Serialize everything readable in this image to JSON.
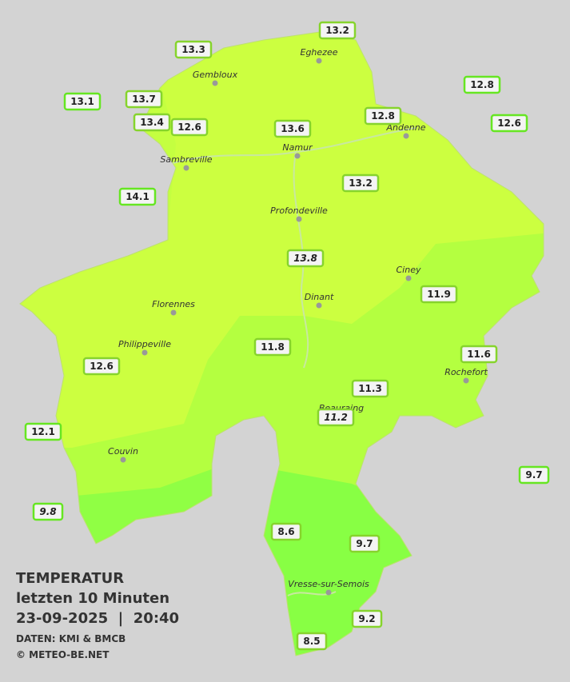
{
  "legend": {
    "title": "TEMPERATUR",
    "subtitle": "letzten 10 Minuten",
    "datetime": "23-09-2025  |  20:40",
    "source": "DATEN: KMI & BMCB",
    "copyright": "© METEO-BE.NET"
  },
  "cities": [
    "Eghezee",
    "Gembloux",
    "Andenne",
    "Namur",
    "Sambreville",
    "Profondeville",
    "Ciney",
    "Dinant",
    "Florennes",
    "Philippeville",
    "Rochefort",
    "Beauraing",
    "Couvin",
    "Vresse-sur-Semois"
  ],
  "stations": [
    13.2,
    13.3,
    12.8,
    13.1,
    13.7,
    13.4,
    12.6,
    13.6,
    12.8,
    12.6,
    14.1,
    13.2,
    13.8,
    11.9,
    11.8,
    11.6,
    12.6,
    11.3,
    11.2,
    12.1,
    9.7,
    9.8,
    8.6,
    9.7,
    9.2,
    8.5
  ]
}
